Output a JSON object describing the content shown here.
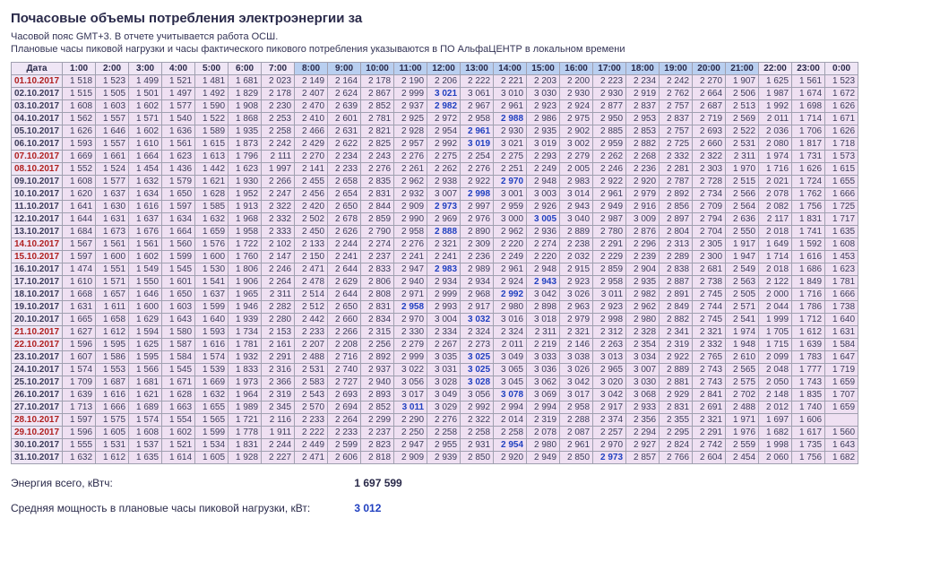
{
  "title": "Почасовые объемы потребления электроэнергии за",
  "notes": [
    "Часовой пояс GMT+3. В отчете учитывается работа ОСШ.",
    "Плановые часы пиковой нагрузки и часы фактического пикового потребления указываются в ПО АльфаЦЕНТР в локальном времени"
  ],
  "headers": [
    "Дата",
    "1:00",
    "2:00",
    "3:00",
    "4:00",
    "5:00",
    "6:00",
    "7:00",
    "8:00",
    "9:00",
    "10:00",
    "11:00",
    "12:00",
    "13:00",
    "14:00",
    "15:00",
    "16:00",
    "17:00",
    "18:00",
    "19:00",
    "20:00",
    "21:00",
    "22:00",
    "23:00",
    "0:00"
  ],
  "planBandStart": 8,
  "planBandEnd": 21,
  "rows": [
    {
      "d": "01.10.2017",
      "w": true,
      "v": [
        1518,
        1523,
        1499,
        1521,
        1481,
        1681,
        2023,
        2149,
        2164,
        2178,
        2190,
        2206,
        2222,
        2221,
        2203,
        2200,
        2223,
        2234,
        2242,
        2270,
        1907,
        1625,
        1561,
        1523
      ]
    },
    {
      "d": "02.10.2017",
      "w": false,
      "p": 12,
      "v": [
        1515,
        1505,
        1501,
        1497,
        1492,
        1829,
        2178,
        2407,
        2624,
        2867,
        2999,
        3021,
        3061,
        3010,
        3030,
        2930,
        2930,
        2919,
        2762,
        2664,
        2506,
        1987,
        1674,
        1672
      ]
    },
    {
      "d": "03.10.2017",
      "w": false,
      "p": 12,
      "v": [
        1608,
        1603,
        1602,
        1577,
        1590,
        1908,
        2230,
        2470,
        2639,
        2852,
        2937,
        2982,
        2967,
        2961,
        2923,
        2924,
        2877,
        2837,
        2757,
        2687,
        2513,
        1992,
        1698,
        1626
      ]
    },
    {
      "d": "04.10.2017",
      "w": false,
      "p": 14,
      "v": [
        1562,
        1557,
        1571,
        1540,
        1522,
        1868,
        2253,
        2410,
        2601,
        2781,
        2925,
        2972,
        2958,
        2988,
        2986,
        2975,
        2950,
        2953,
        2837,
        2719,
        2569,
        2011,
        1714,
        1671
      ]
    },
    {
      "d": "05.10.2017",
      "w": false,
      "p": 13,
      "v": [
        1626,
        1646,
        1602,
        1636,
        1589,
        1935,
        2258,
        2466,
        2631,
        2821,
        2928,
        2954,
        2961,
        2930,
        2935,
        2902,
        2885,
        2853,
        2757,
        2693,
        2522,
        2036,
        1706,
        1626
      ]
    },
    {
      "d": "06.10.2017",
      "w": false,
      "p": 13,
      "v": [
        1593,
        1557,
        1610,
        1561,
        1615,
        1873,
        2242,
        2429,
        2622,
        2825,
        2957,
        2992,
        3019,
        3021,
        3019,
        3002,
        2959,
        2882,
        2725,
        2660,
        2531,
        2080,
        1817,
        1718
      ]
    },
    {
      "d": "07.10.2017",
      "w": true,
      "v": [
        1669,
        1661,
        1664,
        1623,
        1613,
        1796,
        2111,
        2270,
        2234,
        2243,
        2276,
        2275,
        2254,
        2275,
        2293,
        2279,
        2262,
        2268,
        2332,
        2322,
        2311,
        1974,
        1731,
        1573
      ]
    },
    {
      "d": "08.10.2017",
      "w": true,
      "v": [
        1552,
        1524,
        1454,
        1436,
        1442,
        1623,
        1997,
        2141,
        2233,
        2276,
        2261,
        2262,
        2276,
        2251,
        2249,
        2005,
        2246,
        2236,
        2281,
        2303,
        1970,
        1716,
        1626,
        1615
      ]
    },
    {
      "d": "09.10.2017",
      "w": false,
      "p": 14,
      "v": [
        1608,
        1577,
        1632,
        1579,
        1621,
        1930,
        2266,
        2455,
        2658,
        2835,
        2962,
        2938,
        2922,
        2970,
        2948,
        2983,
        2922,
        2920,
        2787,
        2728,
        2515,
        2021,
        1724,
        1655
      ]
    },
    {
      "d": "10.10.2017",
      "w": false,
      "p": 13,
      "v": [
        1620,
        1637,
        1634,
        1650,
        1628,
        1952,
        2247,
        2456,
        2654,
        2831,
        2932,
        3007,
        2998,
        3001,
        3003,
        3014,
        2961,
        2979,
        2892,
        2734,
        2566,
        2078,
        1762,
        1666
      ]
    },
    {
      "d": "11.10.2017",
      "w": false,
      "p": 12,
      "v": [
        1641,
        1630,
        1616,
        1597,
        1585,
        1913,
        2322,
        2420,
        2650,
        2844,
        2909,
        2973,
        2997,
        2959,
        2926,
        2943,
        2949,
        2916,
        2856,
        2709,
        2564,
        2082,
        1756,
        1725
      ]
    },
    {
      "d": "12.10.2017",
      "w": false,
      "p": 15,
      "v": [
        1644,
        1631,
        1637,
        1634,
        1632,
        1968,
        2332,
        2502,
        2678,
        2859,
        2990,
        2969,
        2976,
        3000,
        3005,
        3040,
        2987,
        3009,
        2897,
        2794,
        2636,
        2117,
        1831,
        1717
      ]
    },
    {
      "d": "13.10.2017",
      "w": false,
      "p": 12,
      "v": [
        1684,
        1673,
        1676,
        1664,
        1659,
        1958,
        2333,
        2450,
        2626,
        2790,
        2958,
        2888,
        2890,
        2962,
        2936,
        2889,
        2780,
        2876,
        2804,
        2704,
        2550,
        2018,
        1741,
        1635
      ]
    },
    {
      "d": "14.10.2017",
      "w": true,
      "v": [
        1567,
        1561,
        1561,
        1560,
        1576,
        1722,
        2102,
        2133,
        2244,
        2274,
        2276,
        2321,
        2309,
        2220,
        2274,
        2238,
        2291,
        2296,
        2313,
        2305,
        1917,
        1649,
        1592,
        1608
      ]
    },
    {
      "d": "15.10.2017",
      "w": true,
      "v": [
        1597,
        1600,
        1602,
        1599,
        1600,
        1760,
        2147,
        2150,
        2241,
        2237,
        2241,
        2241,
        2236,
        2249,
        2220,
        2032,
        2229,
        2239,
        2289,
        2300,
        1947,
        1714,
        1616,
        1453
      ]
    },
    {
      "d": "16.10.2017",
      "w": false,
      "p": 12,
      "v": [
        1474,
        1551,
        1549,
        1545,
        1530,
        1806,
        2246,
        2471,
        2644,
        2833,
        2947,
        2983,
        2989,
        2961,
        2948,
        2915,
        2859,
        2904,
        2838,
        2681,
        2549,
        2018,
        1686,
        1623
      ]
    },
    {
      "d": "17.10.2017",
      "w": false,
      "p": 15,
      "v": [
        1610,
        1571,
        1550,
        1601,
        1541,
        1906,
        2264,
        2478,
        2629,
        2806,
        2940,
        2934,
        2934,
        2924,
        2943,
        2923,
        2958,
        2935,
        2887,
        2738,
        2563,
        2122,
        1849,
        1781
      ]
    },
    {
      "d": "18.10.2017",
      "w": false,
      "p": 14,
      "v": [
        1668,
        1657,
        1646,
        1650,
        1637,
        1965,
        2311,
        2514,
        2644,
        2808,
        2971,
        2999,
        2968,
        2992,
        3042,
        3026,
        3011,
        2982,
        2891,
        2745,
        2505,
        2000,
        1716,
        1666
      ]
    },
    {
      "d": "19.10.2017",
      "w": false,
      "p": 11,
      "v": [
        1631,
        1611,
        1600,
        1603,
        1599,
        1946,
        2282,
        2512,
        2650,
        2831,
        2958,
        2993,
        2917,
        2980,
        2898,
        2963,
        2923,
        2962,
        2849,
        2744,
        2571,
        2044,
        1786,
        1738
      ]
    },
    {
      "d": "20.10.2017",
      "w": false,
      "p": 13,
      "v": [
        1665,
        1658,
        1629,
        1643,
        1640,
        1939,
        2280,
        2442,
        2660,
        2834,
        2970,
        3004,
        3032,
        3016,
        3018,
        2979,
        2998,
        2980,
        2882,
        2745,
        2541,
        1999,
        1712,
        1640
      ]
    },
    {
      "d": "21.10.2017",
      "w": true,
      "v": [
        1627,
        1612,
        1594,
        1580,
        1593,
        1734,
        2153,
        2233,
        2266,
        2315,
        2330,
        2334,
        2324,
        2324,
        2311,
        2321,
        2312,
        2328,
        2341,
        2321,
        1974,
        1705,
        1612,
        1631
      ]
    },
    {
      "d": "22.10.2017",
      "w": true,
      "v": [
        1596,
        1595,
        1625,
        1587,
        1616,
        1781,
        2161,
        2207,
        2208,
        2256,
        2279,
        2267,
        2273,
        2011,
        2219,
        2146,
        2263,
        2354,
        2319,
        2332,
        1948,
        1715,
        1639,
        1584
      ]
    },
    {
      "d": "23.10.2017",
      "w": false,
      "p": 13,
      "v": [
        1607,
        1586,
        1595,
        1584,
        1574,
        1932,
        2291,
        2488,
        2716,
        2892,
        2999,
        3035,
        3025,
        3049,
        3033,
        3038,
        3013,
        3034,
        2922,
        2765,
        2610,
        2099,
        1783,
        1647
      ]
    },
    {
      "d": "24.10.2017",
      "w": false,
      "p": 13,
      "v": [
        1574,
        1553,
        1566,
        1545,
        1539,
        1833,
        2316,
        2531,
        2740,
        2937,
        3022,
        3031,
        3025,
        3065,
        3036,
        3026,
        2965,
        3007,
        2889,
        2743,
        2565,
        2048,
        1777,
        1719
      ]
    },
    {
      "d": "25.10.2017",
      "w": false,
      "p": 13,
      "v": [
        1709,
        1687,
        1681,
        1671,
        1669,
        1973,
        2366,
        2583,
        2727,
        2940,
        3056,
        3028,
        3028,
        3045,
        3062,
        3042,
        3020,
        3030,
        2881,
        2743,
        2575,
        2050,
        1743,
        1659
      ]
    },
    {
      "d": "26.10.2017",
      "w": false,
      "p": 14,
      "v": [
        1639,
        1616,
        1621,
        1628,
        1632,
        1964,
        2319,
        2543,
        2693,
        2893,
        3017,
        3049,
        3056,
        3078,
        3069,
        3017,
        3042,
        3068,
        2929,
        2841,
        2702,
        2148,
        1835,
        1707
      ]
    },
    {
      "d": "27.10.2017",
      "w": false,
      "p": 11,
      "v": [
        1713,
        1666,
        1689,
        1663,
        1655,
        1989,
        2345,
        2570,
        2694,
        2852,
        3011,
        3029,
        2992,
        2994,
        2994,
        2958,
        2917,
        2933,
        2831,
        2691,
        2488,
        2012,
        1740,
        1659
      ]
    },
    {
      "d": "28.10.2017",
      "w": true,
      "v": [
        1597,
        1575,
        1574,
        1554,
        1565,
        1721,
        2116,
        2233,
        2264,
        2299,
        2290,
        2276,
        2322,
        2014,
        2319,
        2288,
        2374,
        2356,
        2355,
        2321,
        1971,
        1697,
        1606,
        null
      ]
    },
    {
      "d": "29.10.2017",
      "w": true,
      "v": [
        1596,
        1605,
        1608,
        1602,
        1599,
        1778,
        1911,
        2222,
        2233,
        2237,
        2250,
        2258,
        2258,
        2258,
        2078,
        2087,
        2257,
        2294,
        2295,
        2291,
        1976,
        1682,
        1617,
        1560
      ]
    },
    {
      "d": "30.10.2017",
      "w": false,
      "p": 14,
      "v": [
        1555,
        1531,
        1537,
        1521,
        1534,
        1831,
        2244,
        2449,
        2599,
        2823,
        2947,
        2955,
        2931,
        2954,
        2980,
        2961,
        2970,
        2927,
        2824,
        2742,
        2559,
        1998,
        1735,
        1643
      ]
    },
    {
      "d": "31.10.2017",
      "w": false,
      "p": 17,
      "v": [
        1632,
        1612,
        1635,
        1614,
        1605,
        1928,
        2227,
        2471,
        2606,
        2818,
        2909,
        2939,
        2850,
        2920,
        2949,
        2850,
        2973,
        2857,
        2766,
        2604,
        2454,
        2060,
        1756,
        1682
      ]
    }
  ],
  "summary": {
    "energyLabel": "Энергия всего, кВтч:",
    "energyValue": "1 697 599",
    "avgLabel": "Средняя мощность в плановые часы пиковой нагрузки, кВт:",
    "avgValue": "3 012"
  }
}
